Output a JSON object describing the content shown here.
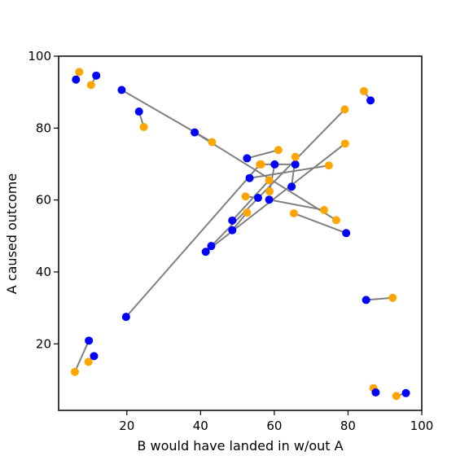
{
  "chart_data": {
    "type": "scatter",
    "title": "",
    "xlabel": "B would have landed in w/out A",
    "ylabel": "A caused outcome",
    "xlim": [
      1.5,
      100
    ],
    "ylim": [
      1.5,
      100
    ],
    "xticks": [
      20,
      40,
      60,
      80,
      100
    ],
    "yticks": [
      20,
      40,
      60,
      80,
      100
    ],
    "grid": false,
    "legend": "none",
    "colors": {
      "blue": "#0000ff",
      "orange": "#ffa500",
      "line": "#808080"
    },
    "pairs": [
      {
        "blue": [
          6.2,
          93.5
        ],
        "orange": [
          7.1,
          95.6
        ]
      },
      {
        "blue": [
          11.7,
          94.6
        ],
        "orange": [
          10.3,
          92.0
        ]
      },
      {
        "blue": [
          23.3,
          84.6
        ],
        "orange": [
          24.6,
          80.3
        ]
      },
      {
        "blue": [
          18.6,
          90.6
        ],
        "orange": [
          43.1,
          76.1
        ]
      },
      {
        "blue": [
          38.4,
          78.8
        ],
        "orange": [
          76.8,
          54.4
        ]
      },
      {
        "blue": [
          86.1,
          87.7
        ],
        "orange": [
          84.3,
          90.3
        ]
      },
      {
        "blue": [
          52.6,
          71.6
        ],
        "orange": [
          61.1,
          73.9
        ]
      },
      {
        "blue": [
          53.3,
          66.1
        ],
        "orange": [
          74.8,
          69.6
        ]
      },
      {
        "blue": [
          60.1,
          69.9
        ],
        "orange": [
          58.7,
          62.4
        ]
      },
      {
        "blue": [
          65.7,
          69.9
        ],
        "orange": [
          56.4,
          69.9
        ]
      },
      {
        "blue": [
          64.7,
          63.7
        ],
        "orange": [
          65.7,
          72.0
        ]
      },
      {
        "blue": [
          55.6,
          60.6
        ],
        "orange": [
          52.2,
          61.0
        ]
      },
      {
        "blue": [
          58.6,
          60.1
        ],
        "orange": [
          73.5,
          57.2
        ]
      },
      {
        "blue": [
          79.5,
          50.8
        ],
        "orange": [
          65.3,
          56.3
        ]
      },
      {
        "blue": [
          48.6,
          54.3
        ],
        "orange": [
          58.6,
          65.5
        ]
      },
      {
        "blue": [
          48.6,
          51.6
        ],
        "orange": [
          52.6,
          56.5
        ]
      },
      {
        "blue": [
          42.9,
          47.2
        ],
        "orange": [
          79.1,
          85.2
        ]
      },
      {
        "blue": [
          41.4,
          45.6
        ],
        "orange": [
          79.2,
          75.7
        ]
      },
      {
        "blue": [
          19.8,
          27.5
        ],
        "orange": [
          56.1,
          69.9
        ]
      },
      {
        "blue": [
          84.9,
          32.2
        ],
        "orange": [
          92.1,
          32.8
        ]
      },
      {
        "blue": [
          9.7,
          20.9
        ],
        "orange": [
          5.9,
          12.2
        ]
      },
      {
        "blue": [
          11.1,
          16.6
        ],
        "orange": [
          9.6,
          15.0
        ]
      },
      {
        "blue": [
          87.5,
          6.5
        ],
        "orange": [
          86.9,
          7.7
        ]
      },
      {
        "blue": [
          95.7,
          6.3
        ],
        "orange": [
          93.1,
          5.5
        ]
      }
    ]
  }
}
